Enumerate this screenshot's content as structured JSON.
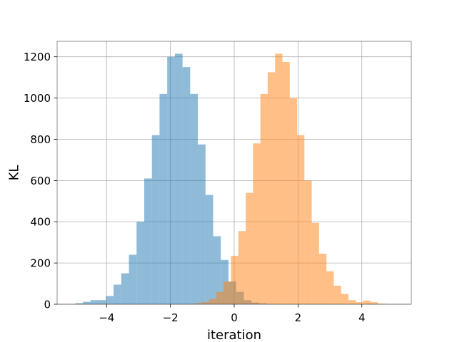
{
  "chart_data": {
    "type": "histogram",
    "title": "",
    "xlabel": "iteration",
    "ylabel": "KL",
    "xlim": [
      -5.55,
      5.55
    ],
    "ylim": [
      0,
      1275
    ],
    "grid": true,
    "xticks": [
      -4,
      -2,
      0,
      2,
      4
    ],
    "xtick_labels": [
      "−4",
      "−2",
      "0",
      "2",
      "4"
    ],
    "yticks": [
      0,
      200,
      400,
      600,
      800,
      1000,
      1200
    ],
    "ytick_labels": [
      "0",
      "200",
      "400",
      "600",
      "800",
      "1000",
      "1200"
    ],
    "series": [
      {
        "color": "#1f77b4",
        "opacity": 0.5,
        "bins": [
          [
            -4.98,
            -4.74,
            5
          ],
          [
            -4.74,
            -4.5,
            12
          ],
          [
            -4.5,
            -4.26,
            20
          ],
          [
            -4.26,
            -4.02,
            20
          ],
          [
            -4.02,
            -3.78,
            40
          ],
          [
            -3.78,
            -3.54,
            95
          ],
          [
            -3.54,
            -3.3,
            150
          ],
          [
            -3.3,
            -3.06,
            240
          ],
          [
            -3.06,
            -2.82,
            400
          ],
          [
            -2.82,
            -2.58,
            610
          ],
          [
            -2.58,
            -2.34,
            820
          ],
          [
            -2.34,
            -2.1,
            1020
          ],
          [
            -2.1,
            -1.86,
            1200
          ],
          [
            -1.86,
            -1.62,
            1215
          ],
          [
            -1.62,
            -1.38,
            1150
          ],
          [
            -1.38,
            -1.14,
            1020
          ],
          [
            -1.14,
            -0.9,
            775
          ],
          [
            -0.9,
            -0.66,
            530
          ],
          [
            -0.66,
            -0.42,
            330
          ],
          [
            -0.42,
            -0.18,
            215
          ],
          [
            -0.18,
            0.06,
            110
          ],
          [
            0.06,
            0.3,
            60
          ],
          [
            0.3,
            0.54,
            20
          ],
          [
            0.54,
            0.78,
            8
          ],
          [
            0.78,
            1.02,
            4
          ]
        ]
      },
      {
        "color": "#ff7f0e",
        "opacity": 0.5,
        "bins": [
          [
            -1.25,
            -1.02,
            5
          ],
          [
            -1.02,
            -0.79,
            10
          ],
          [
            -0.79,
            -0.56,
            25
          ],
          [
            -0.56,
            -0.33,
            60
          ],
          [
            -0.33,
            -0.1,
            110
          ],
          [
            -0.1,
            0.13,
            235
          ],
          [
            0.13,
            0.36,
            355
          ],
          [
            0.36,
            0.59,
            540
          ],
          [
            0.59,
            0.82,
            780
          ],
          [
            0.82,
            1.05,
            1020
          ],
          [
            1.05,
            1.28,
            1125
          ],
          [
            1.28,
            1.51,
            1215
          ],
          [
            1.51,
            1.74,
            1175
          ],
          [
            1.74,
            1.97,
            1000
          ],
          [
            1.97,
            2.2,
            820
          ],
          [
            2.2,
            2.43,
            600
          ],
          [
            2.43,
            2.66,
            395
          ],
          [
            2.66,
            2.89,
            245
          ],
          [
            2.89,
            3.12,
            160
          ],
          [
            3.12,
            3.35,
            90
          ],
          [
            3.35,
            3.58,
            50
          ],
          [
            3.58,
            3.81,
            20
          ],
          [
            3.81,
            4.04,
            10
          ],
          [
            4.04,
            4.27,
            18
          ],
          [
            4.27,
            4.5,
            10
          ],
          [
            4.5,
            4.73,
            3
          ]
        ]
      }
    ]
  }
}
